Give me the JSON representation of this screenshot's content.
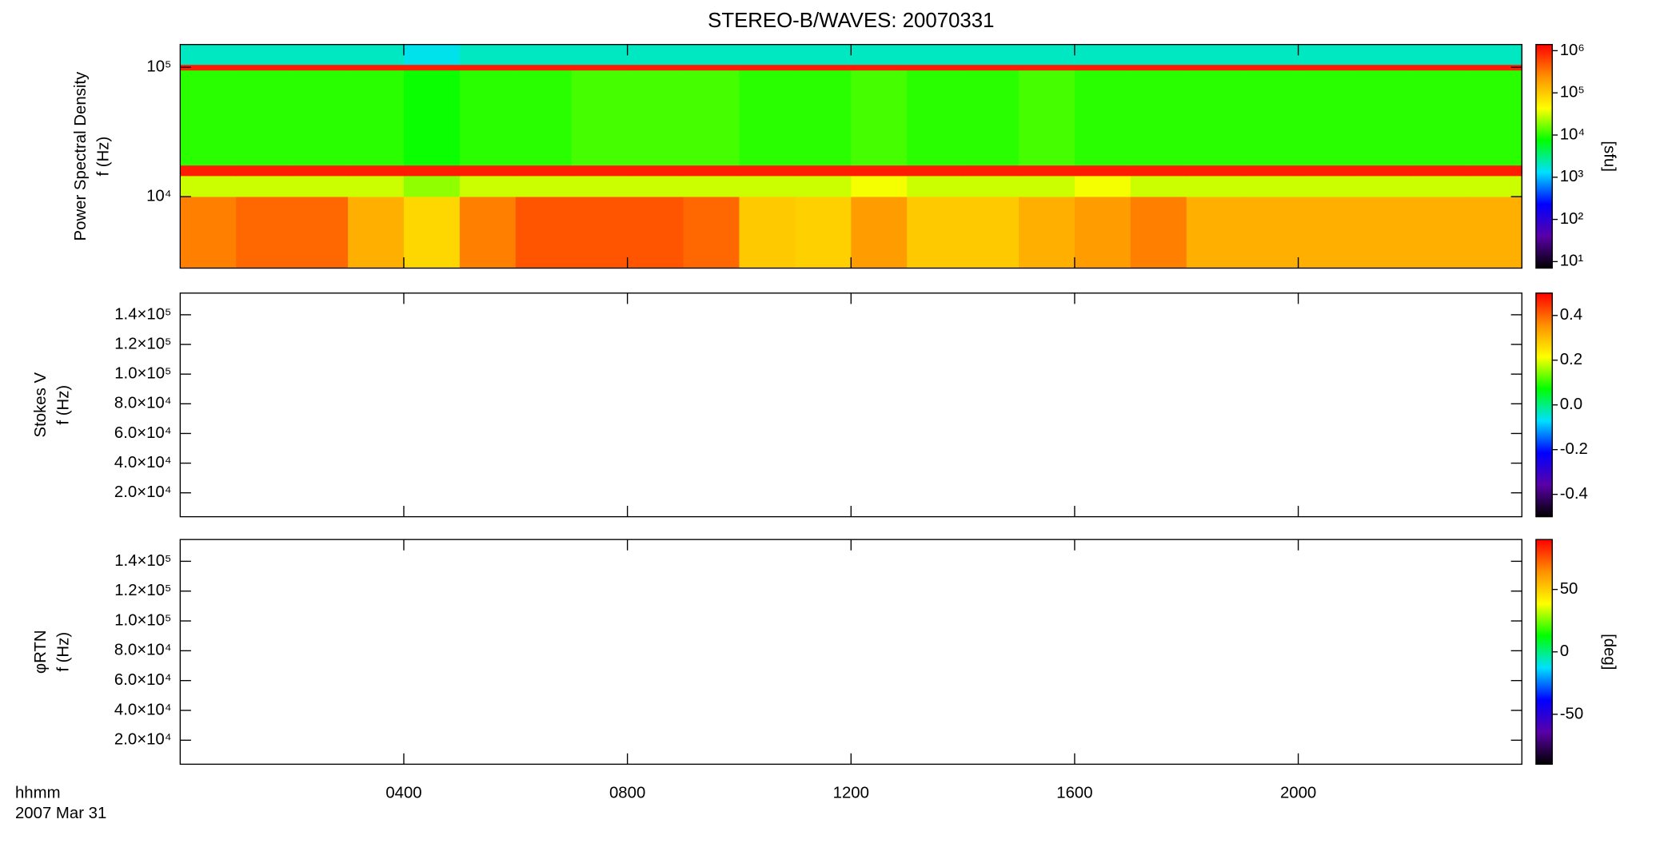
{
  "chart_data": [
    {
      "type": "heatmap",
      "title": "STEREO-B/WAVES: 20070331",
      "ylabel": [
        "Power Spectral Density",
        "f (Hz)"
      ],
      "colorbar_label": "[sfu]",
      "log_y": true,
      "log_color": true,
      "colormap": [
        "#000000",
        "#5a00a8",
        "#0000ff",
        "#00e0ff",
        "#00ff00",
        "#ffff00",
        "#ff9000",
        "#ff0000"
      ],
      "xlim": [
        0,
        24
      ],
      "ylim": [
        2800,
        150000
      ],
      "yticks": [
        {
          "value": 10000,
          "label": "10⁴"
        },
        {
          "value": 100000,
          "label": "10⁵"
        }
      ],
      "clim": [
        7,
        1400000
      ],
      "cticks": [
        {
          "value": 10,
          "label": "10¹"
        },
        {
          "value": 100,
          "label": "10²"
        },
        {
          "value": 1000,
          "label": "10³"
        },
        {
          "value": 10000,
          "label": "10⁴"
        },
        {
          "value": 100000,
          "label": "10⁵"
        },
        {
          "value": 1000000,
          "label": "10⁶"
        }
      ],
      "x": [
        0,
        1,
        2,
        3,
        4,
        5,
        6,
        7,
        8,
        9,
        10,
        11,
        12,
        13,
        14,
        15,
        16,
        17,
        18,
        19,
        20,
        21,
        22,
        23,
        24
      ],
      "y": [
        2800,
        10000,
        14500,
        17500,
        95000,
        105000,
        150000
      ],
      "z": [
        [
          300000,
          400000,
          400000,
          150000,
          80000,
          300000,
          500000,
          500000,
          500000,
          400000,
          100000,
          90000,
          200000,
          100000,
          100000,
          150000,
          200000,
          300000,
          150000,
          150000,
          150000,
          150000,
          150000,
          150000
        ],
        [
          30000,
          30000,
          30000,
          30000,
          20000,
          30000,
          30000,
          30000,
          30000,
          30000,
          30000,
          30000,
          40000,
          30000,
          30000,
          30000,
          40000,
          30000,
          30000,
          30000,
          30000,
          30000,
          30000,
          30000
        ],
        [
          1000000,
          1000000,
          1000000,
          1000000,
          1000000,
          1000000,
          1000000,
          1000000,
          1000000,
          1000000,
          1000000,
          1000000,
          1000000,
          1000000,
          1000000,
          1000000,
          1000000,
          1000000,
          1000000,
          1000000,
          1000000,
          1000000,
          1000000,
          1000000
        ],
        [
          10000,
          10000,
          10000,
          10000,
          8000,
          10000,
          10000,
          12000,
          12000,
          12000,
          10000,
          10000,
          12000,
          10000,
          10000,
          12000,
          10000,
          10000,
          10000,
          10000,
          10000,
          10000,
          10000,
          10000
        ],
        [
          1000000,
          1000000,
          1000000,
          1000000,
          1000000,
          1000000,
          1000000,
          1000000,
          1000000,
          1000000,
          1000000,
          1000000,
          1000000,
          1000000,
          1000000,
          1000000,
          1000000,
          1000000,
          1000000,
          1000000,
          1000000,
          1000000,
          1000000,
          1000000
        ],
        [
          2000,
          2000,
          2000,
          2000,
          1500,
          2000,
          2000,
          2000,
          2000,
          2000,
          2000,
          2000,
          2000,
          2000,
          2000,
          2000,
          2000,
          2000,
          2000,
          2000,
          2000,
          2000,
          2000,
          2000
        ]
      ]
    },
    {
      "type": "heatmap",
      "ylabel": [
        "Stokes V",
        "f (Hz)"
      ],
      "colormap": [
        "#000000",
        "#5a00a8",
        "#0000ff",
        "#00e0ff",
        "#00ff00",
        "#ffff00",
        "#ff9000",
        "#ff0000"
      ],
      "xlim": [
        0,
        24
      ],
      "ylim": [
        3900,
        154600
      ],
      "yticks": [
        {
          "value": 20000,
          "label": "2.0×10⁴"
        },
        {
          "value": 40000,
          "label": "4.0×10⁴"
        },
        {
          "value": 60000,
          "label": "6.0×10⁴"
        },
        {
          "value": 80000,
          "label": "8.0×10⁴"
        },
        {
          "value": 100000,
          "label": "1.0×10⁵"
        },
        {
          "value": 120000,
          "label": "1.2×10⁵"
        },
        {
          "value": 140000,
          "label": "1.4×10⁵"
        }
      ],
      "clim": [
        -0.5,
        0.5
      ],
      "cticks": [
        -0.4,
        -0.2,
        {
          "value": 0,
          "label": "0.0"
        },
        0.2,
        0.4
      ]
    },
    {
      "type": "heatmap",
      "ylabel": [
        "φRTN",
        "f (Hz)"
      ],
      "colorbar_label": "[deg]",
      "colormap": [
        "#000000",
        "#5a00a8",
        "#0000ff",
        "#00e0ff",
        "#00ff00",
        "#ffff00",
        "#ff9000",
        "#ff0000"
      ],
      "xlim": [
        0,
        24
      ],
      "ylim": [
        3900,
        154600
      ],
      "yticks": [
        {
          "value": 20000,
          "label": "2.0×10⁴"
        },
        {
          "value": 40000,
          "label": "4.0×10⁴"
        },
        {
          "value": 60000,
          "label": "6.0×10⁴"
        },
        {
          "value": 80000,
          "label": "8.0×10⁴"
        },
        {
          "value": 100000,
          "label": "1.0×10⁵"
        },
        {
          "value": 120000,
          "label": "1.2×10⁵"
        },
        {
          "value": 140000,
          "label": "1.4×10⁵"
        }
      ],
      "clim": [
        -90,
        90
      ],
      "cticks": [
        -50,
        0,
        50
      ],
      "xticks": [
        {
          "value": 4,
          "label": "0400"
        },
        {
          "value": 8,
          "label": "0800"
        },
        {
          "value": 12,
          "label": "1200"
        },
        {
          "value": 16,
          "label": "1600"
        },
        {
          "value": 20,
          "label": "2000"
        }
      ],
      "xlabel": [
        "hhmm",
        "2007 Mar 31"
      ]
    }
  ]
}
